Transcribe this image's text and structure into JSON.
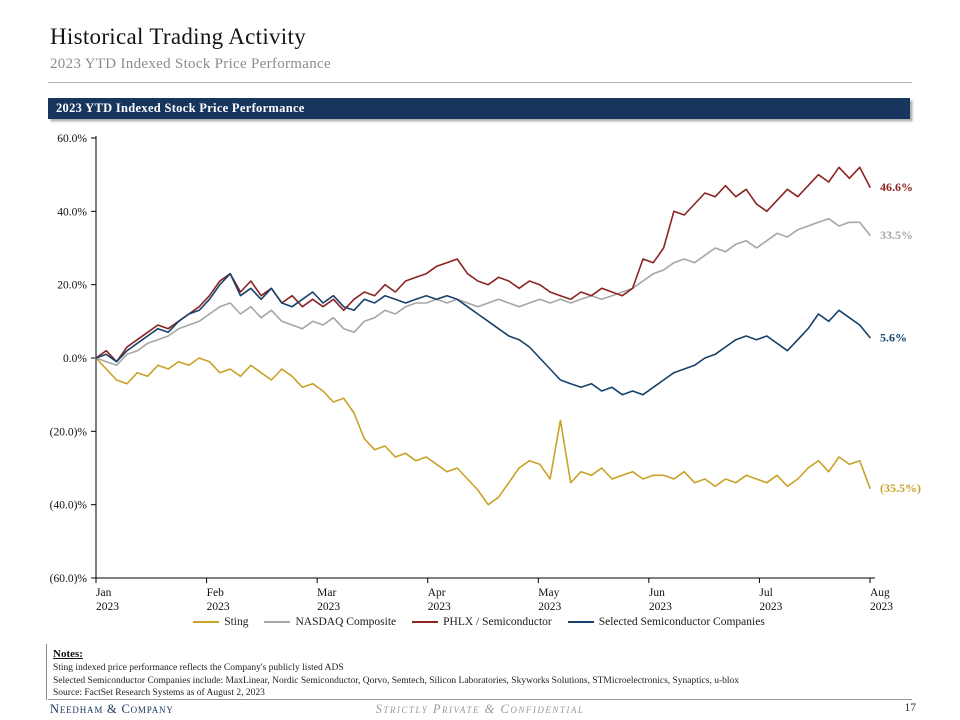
{
  "slide": {
    "title": "Historical Trading Activity",
    "subtitle": "2023 YTD Indexed Stock Price Performance",
    "section_header": "2023 YTD Indexed Stock Price Performance",
    "notes": {
      "heading": "Notes:",
      "lines": [
        "Sting indexed price performance reflects the Company's publicly listed ADS",
        "Selected Semiconductor Companies include: MaxLinear, Nordic Semiconductor, Qorvo, Semtech, Silicon Laboratories, Skyworks Solutions, STMicroelectronics, Synaptics, u-blox",
        "Source: FactSet Research Systems as of August 2, 2023"
      ]
    },
    "footer": {
      "left": "Needham & Company",
      "center": "Strictly Private & Confidential",
      "page": "17"
    }
  },
  "chart_data": {
    "type": "line",
    "title": "2023 YTD Indexed Stock Price Performance",
    "ylim": [
      -60,
      60
    ],
    "y_ticks": [
      60,
      40,
      20,
      0,
      -20,
      -40,
      -60
    ],
    "y_tick_labels": [
      "60.0%",
      "40.0%",
      "20.0%",
      "0.0%",
      "(20.0)%",
      "(40.0)%",
      "(60.0)%"
    ],
    "x_tick_labels": [
      {
        "month": "Jan",
        "year": "2023"
      },
      {
        "month": "Feb",
        "year": "2023"
      },
      {
        "month": "Mar",
        "year": "2023"
      },
      {
        "month": "Apr",
        "year": "2023"
      },
      {
        "month": "May",
        "year": "2023"
      },
      {
        "month": "Jun",
        "year": "2023"
      },
      {
        "month": "Jul",
        "year": "2023"
      },
      {
        "month": "Aug",
        "year": "2023"
      }
    ],
    "legend_position": "bottom",
    "grid": false,
    "series": [
      {
        "name": "Sting",
        "color": "#C9A227",
        "end_label": "(35.5%)",
        "end_value": -35.5,
        "values": [
          0,
          -3,
          -6,
          -7,
          -4,
          -5,
          -2,
          -3,
          -1,
          -2,
          0,
          -1,
          -4,
          -3,
          -5,
          -2,
          -4,
          -6,
          -3,
          -5,
          -8,
          -7,
          -9,
          -12,
          -11,
          -15,
          -22,
          -25,
          -24,
          -27,
          -26,
          -28,
          -27,
          -29,
          -31,
          -30,
          -33,
          -36,
          -40,
          -38,
          -34,
          -30,
          -28,
          -29,
          -33,
          -17,
          -34,
          -31,
          -32,
          -30,
          -33,
          -32,
          -31,
          -33,
          -32,
          -32,
          -33,
          -31,
          -34,
          -33,
          -35,
          -33,
          -34,
          -32,
          -33,
          -34,
          -32,
          -35,
          -33,
          -30,
          -28,
          -31,
          -27,
          -29,
          -28,
          -35.5
        ]
      },
      {
        "name": "NASDAQ Composite",
        "color": "#A6A6A6",
        "end_label": "33.5%",
        "end_value": 33.5,
        "values": [
          0,
          -1,
          -2,
          1,
          2,
          4,
          5,
          6,
          8,
          9,
          10,
          12,
          14,
          15,
          12,
          14,
          11,
          13,
          10,
          9,
          8,
          10,
          9,
          11,
          8,
          7,
          10,
          11,
          13,
          12,
          14,
          15,
          15,
          16,
          15,
          16,
          15,
          14,
          15,
          16,
          15,
          14,
          15,
          16,
          15,
          16,
          15,
          16,
          17,
          16,
          17,
          18,
          19,
          21,
          23,
          24,
          26,
          27,
          26,
          28,
          30,
          29,
          31,
          32,
          30,
          32,
          34,
          33,
          35,
          36,
          37,
          38,
          36,
          37,
          37,
          33.5
        ]
      },
      {
        "name": "PHLX / Semiconductor",
        "color": "#8B2423",
        "end_label": "46.6%",
        "end_value": 46.6,
        "values": [
          0,
          2,
          -1,
          3,
          5,
          7,
          9,
          8,
          10,
          12,
          14,
          17,
          21,
          23,
          18,
          21,
          17,
          19,
          15,
          17,
          14,
          16,
          14,
          16,
          13,
          16,
          18,
          17,
          20,
          18,
          21,
          22,
          23,
          25,
          26,
          27,
          23,
          21,
          20,
          22,
          21,
          19,
          21,
          20,
          18,
          17,
          16,
          18,
          17,
          19,
          18,
          17,
          19,
          27,
          26,
          30,
          40,
          39,
          42,
          45,
          44,
          47,
          44,
          46,
          42,
          40,
          43,
          46,
          44,
          47,
          50,
          48,
          52,
          49,
          52,
          46.6
        ]
      },
      {
        "name": "Selected Semiconductor Companies",
        "color": "#17426B",
        "end_label": "5.6%",
        "end_value": 5.6,
        "values": [
          0,
          1,
          -1,
          2,
          4,
          6,
          8,
          7,
          10,
          12,
          13,
          16,
          20,
          23,
          17,
          19,
          16,
          19,
          15,
          14,
          16,
          18,
          15,
          17,
          14,
          13,
          16,
          15,
          17,
          16,
          15,
          16,
          17,
          16,
          17,
          16,
          14,
          12,
          10,
          8,
          6,
          5,
          3,
          0,
          -3,
          -6,
          -7,
          -8,
          -7,
          -9,
          -8,
          -10,
          -9,
          -10,
          -8,
          -6,
          -4,
          -3,
          -2,
          0,
          1,
          3,
          5,
          6,
          5,
          6,
          4,
          2,
          5,
          8,
          12,
          10,
          13,
          11,
          9,
          5.6
        ]
      }
    ]
  }
}
